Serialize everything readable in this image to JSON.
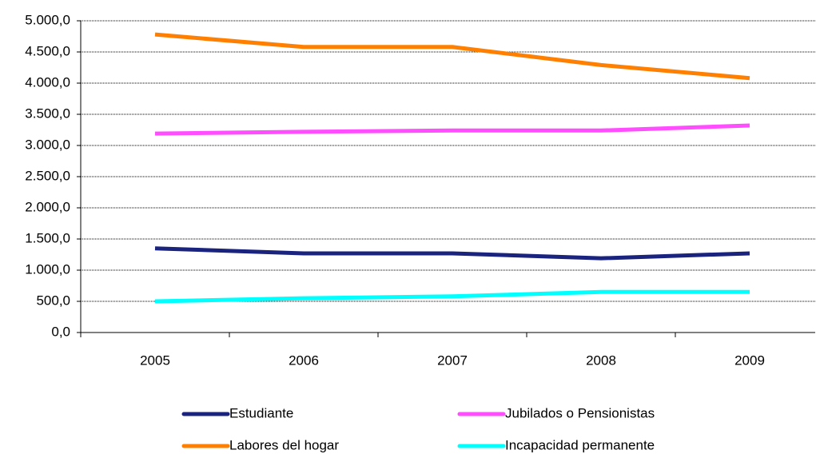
{
  "chart_data": {
    "type": "line",
    "categories": [
      "2005",
      "2006",
      "2007",
      "2008",
      "2009"
    ],
    "series": [
      {
        "name": "Estudiante",
        "color": "#1a237e",
        "values": [
          1350,
          1270,
          1270,
          1190,
          1270
        ]
      },
      {
        "name": "Jubilados o Pensionistas",
        "color": "#ff4dff",
        "values": [
          3190,
          3220,
          3240,
          3240,
          3320
        ]
      },
      {
        "name": "Labores del hogar",
        "color": "#ff8000",
        "values": [
          4780,
          4580,
          4580,
          4290,
          4080
        ]
      },
      {
        "name": "Incapacidad permanente",
        "color": "#00ffff",
        "values": [
          500,
          550,
          580,
          650,
          650
        ]
      }
    ],
    "ylim": [
      0,
      5000
    ],
    "yticks": [
      {
        "value": 0,
        "label": "0,0"
      },
      {
        "value": 500,
        "label": "500,0"
      },
      {
        "value": 1000,
        "label": "1.000,0"
      },
      {
        "value": 1500,
        "label": "1.500,0"
      },
      {
        "value": 2000,
        "label": "2.000,0"
      },
      {
        "value": 2500,
        "label": "2.500,0"
      },
      {
        "value": 3000,
        "label": "3.000,0"
      },
      {
        "value": 3500,
        "label": "3.500,0"
      },
      {
        "value": 4000,
        "label": "4.000,0"
      },
      {
        "value": 4500,
        "label": "4.500,0"
      },
      {
        "value": 5000,
        "label": "5.000,0"
      }
    ],
    "grid": true
  }
}
